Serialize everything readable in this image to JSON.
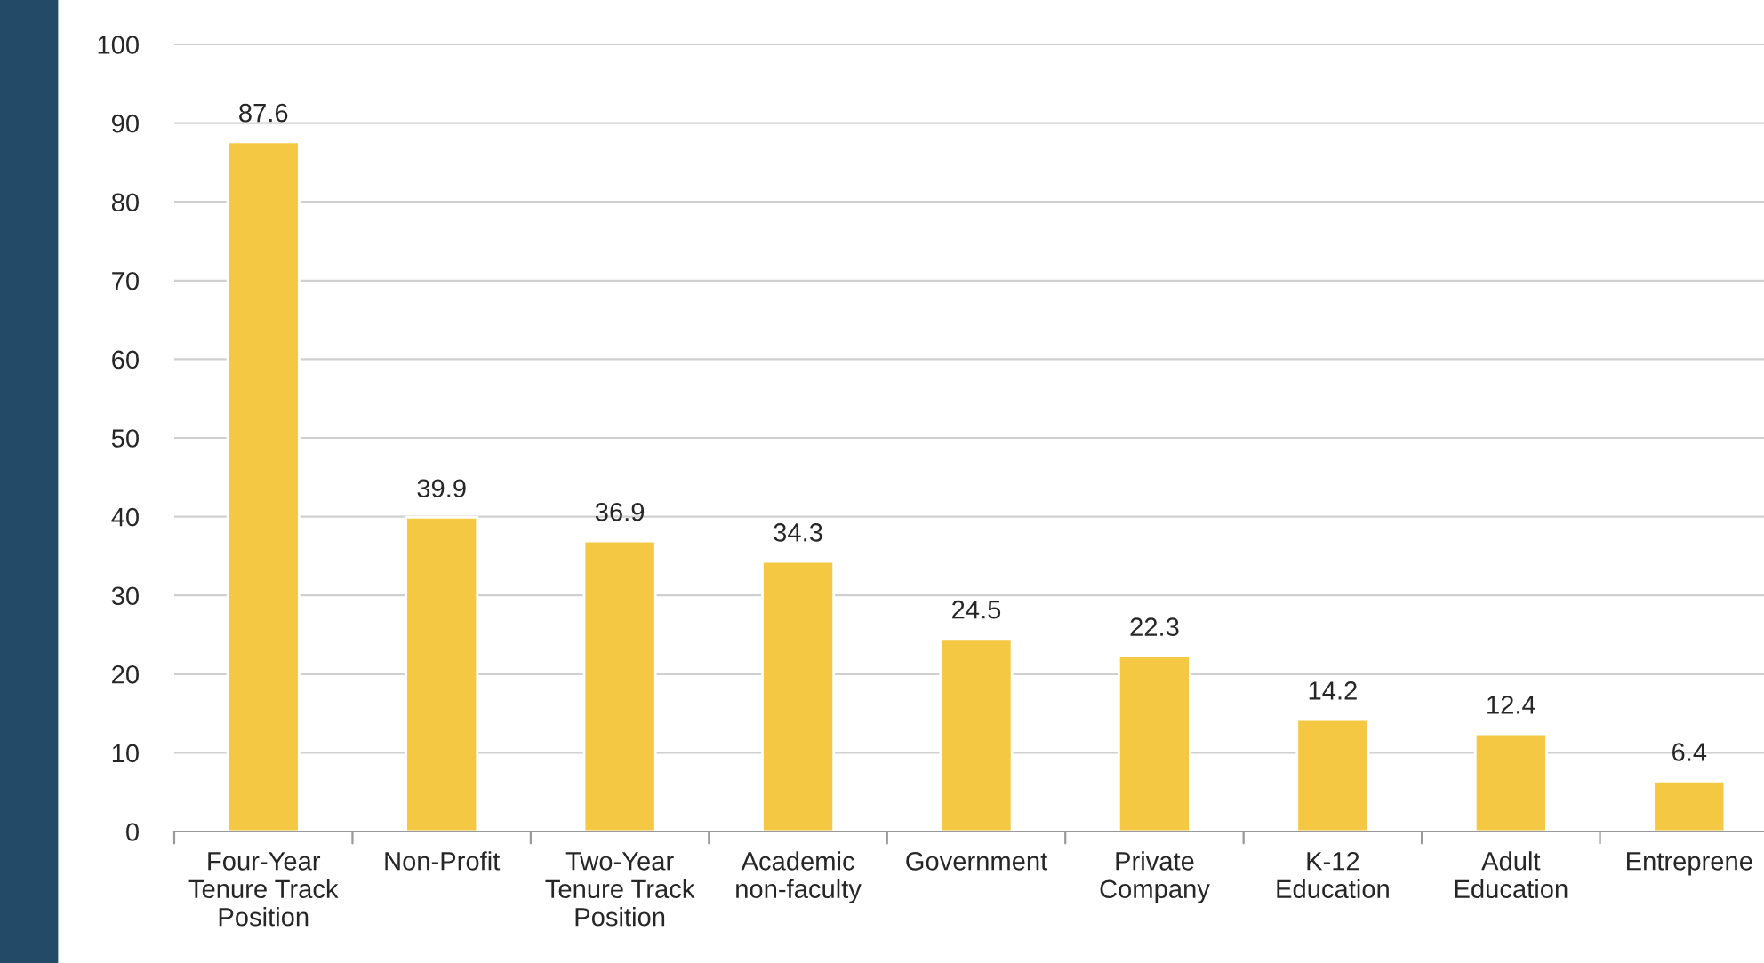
{
  "chart_data": {
    "type": "bar",
    "categories": [
      "Four-Year\nTenure Track\nPosition",
      "Non-Profit",
      "Two-Year\nTenure Track\nPosition",
      "Academic\nnon-faculty",
      "Government",
      "Private\nCompany",
      "K-12\nEducation",
      "Adult\nEducation",
      "Entreprene"
    ],
    "values": [
      87.6,
      39.9,
      36.9,
      34.3,
      24.5,
      22.3,
      14.2,
      12.4,
      6.4
    ],
    "color": "#f4c842",
    "ylim": [
      0,
      100
    ],
    "yticks": [
      0,
      10,
      20,
      30,
      40,
      50,
      60,
      70,
      80,
      90,
      100
    ],
    "grid": "y",
    "data_labels": true
  }
}
